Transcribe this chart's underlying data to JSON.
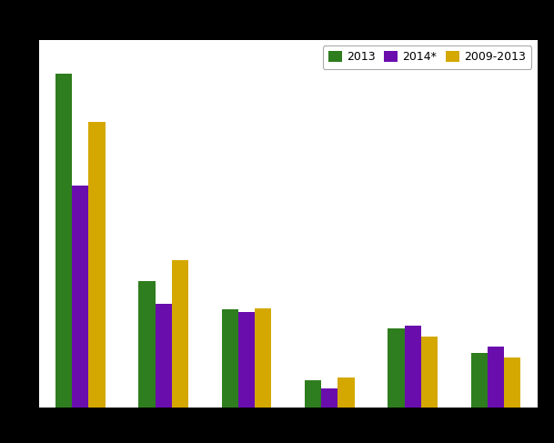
{
  "categories": [
    "",
    "",
    "",
    "",
    "",
    ""
  ],
  "series": {
    "2013": [
      245,
      93,
      72,
      20,
      58,
      40
    ],
    "2014*": [
      163,
      76,
      70,
      14,
      60,
      45
    ],
    "2009-2013": [
      210,
      108,
      73,
      22,
      52,
      37
    ]
  },
  "colors": {
    "2013": "#2e7d1e",
    "2014*": "#6a0dad",
    "2009-2013": "#d4a800"
  },
  "legend_labels": [
    "2013",
    "2014*",
    "2009-2013"
  ],
  "ylim": [
    0,
    270
  ],
  "background_color": "#ffffff",
  "outer_background": "#000000",
  "grid_color": "#d0d0d0",
  "bar_width": 0.2,
  "figsize": [
    6.09,
    4.87
  ],
  "dpi": 100
}
